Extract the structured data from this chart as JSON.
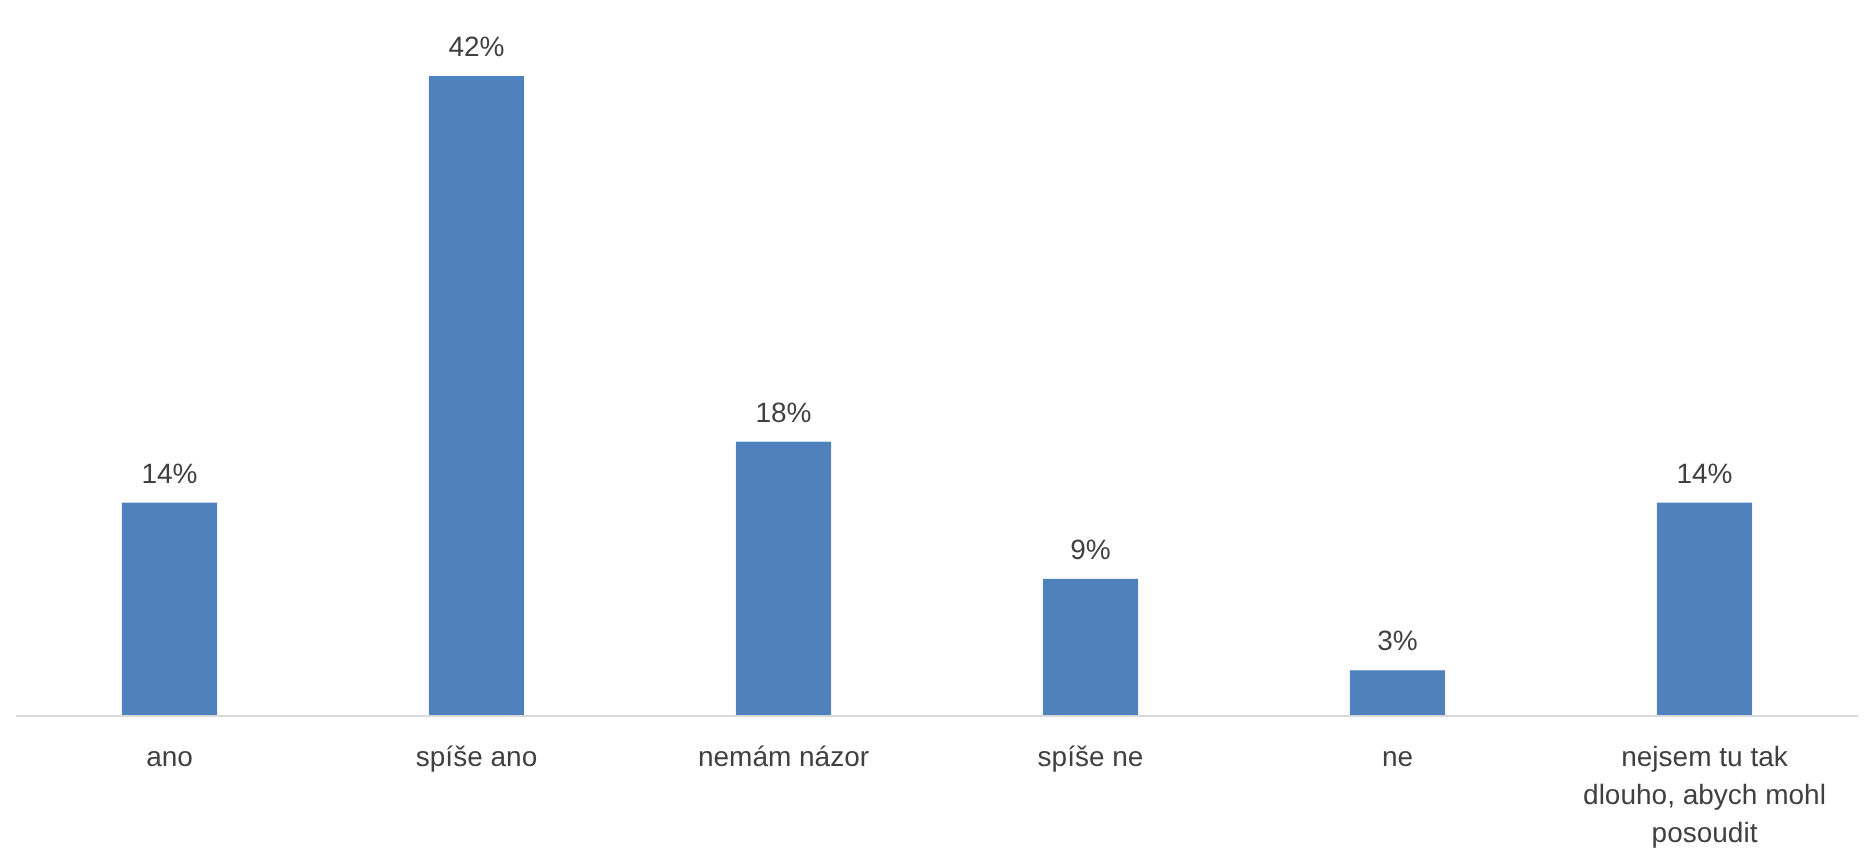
{
  "chart_data": {
    "type": "bar",
    "categories": [
      "ano",
      "spíše ano",
      "nemám názor",
      "spíše ne",
      "ne",
      "nejsem tu tak dlouho, abych mohl posoudit"
    ],
    "values": [
      14,
      42,
      18,
      9,
      3,
      14
    ],
    "value_labels": [
      "14%",
      "42%",
      "18%",
      "9%",
      "3%",
      "14%"
    ],
    "color": "#4f81bd"
  }
}
